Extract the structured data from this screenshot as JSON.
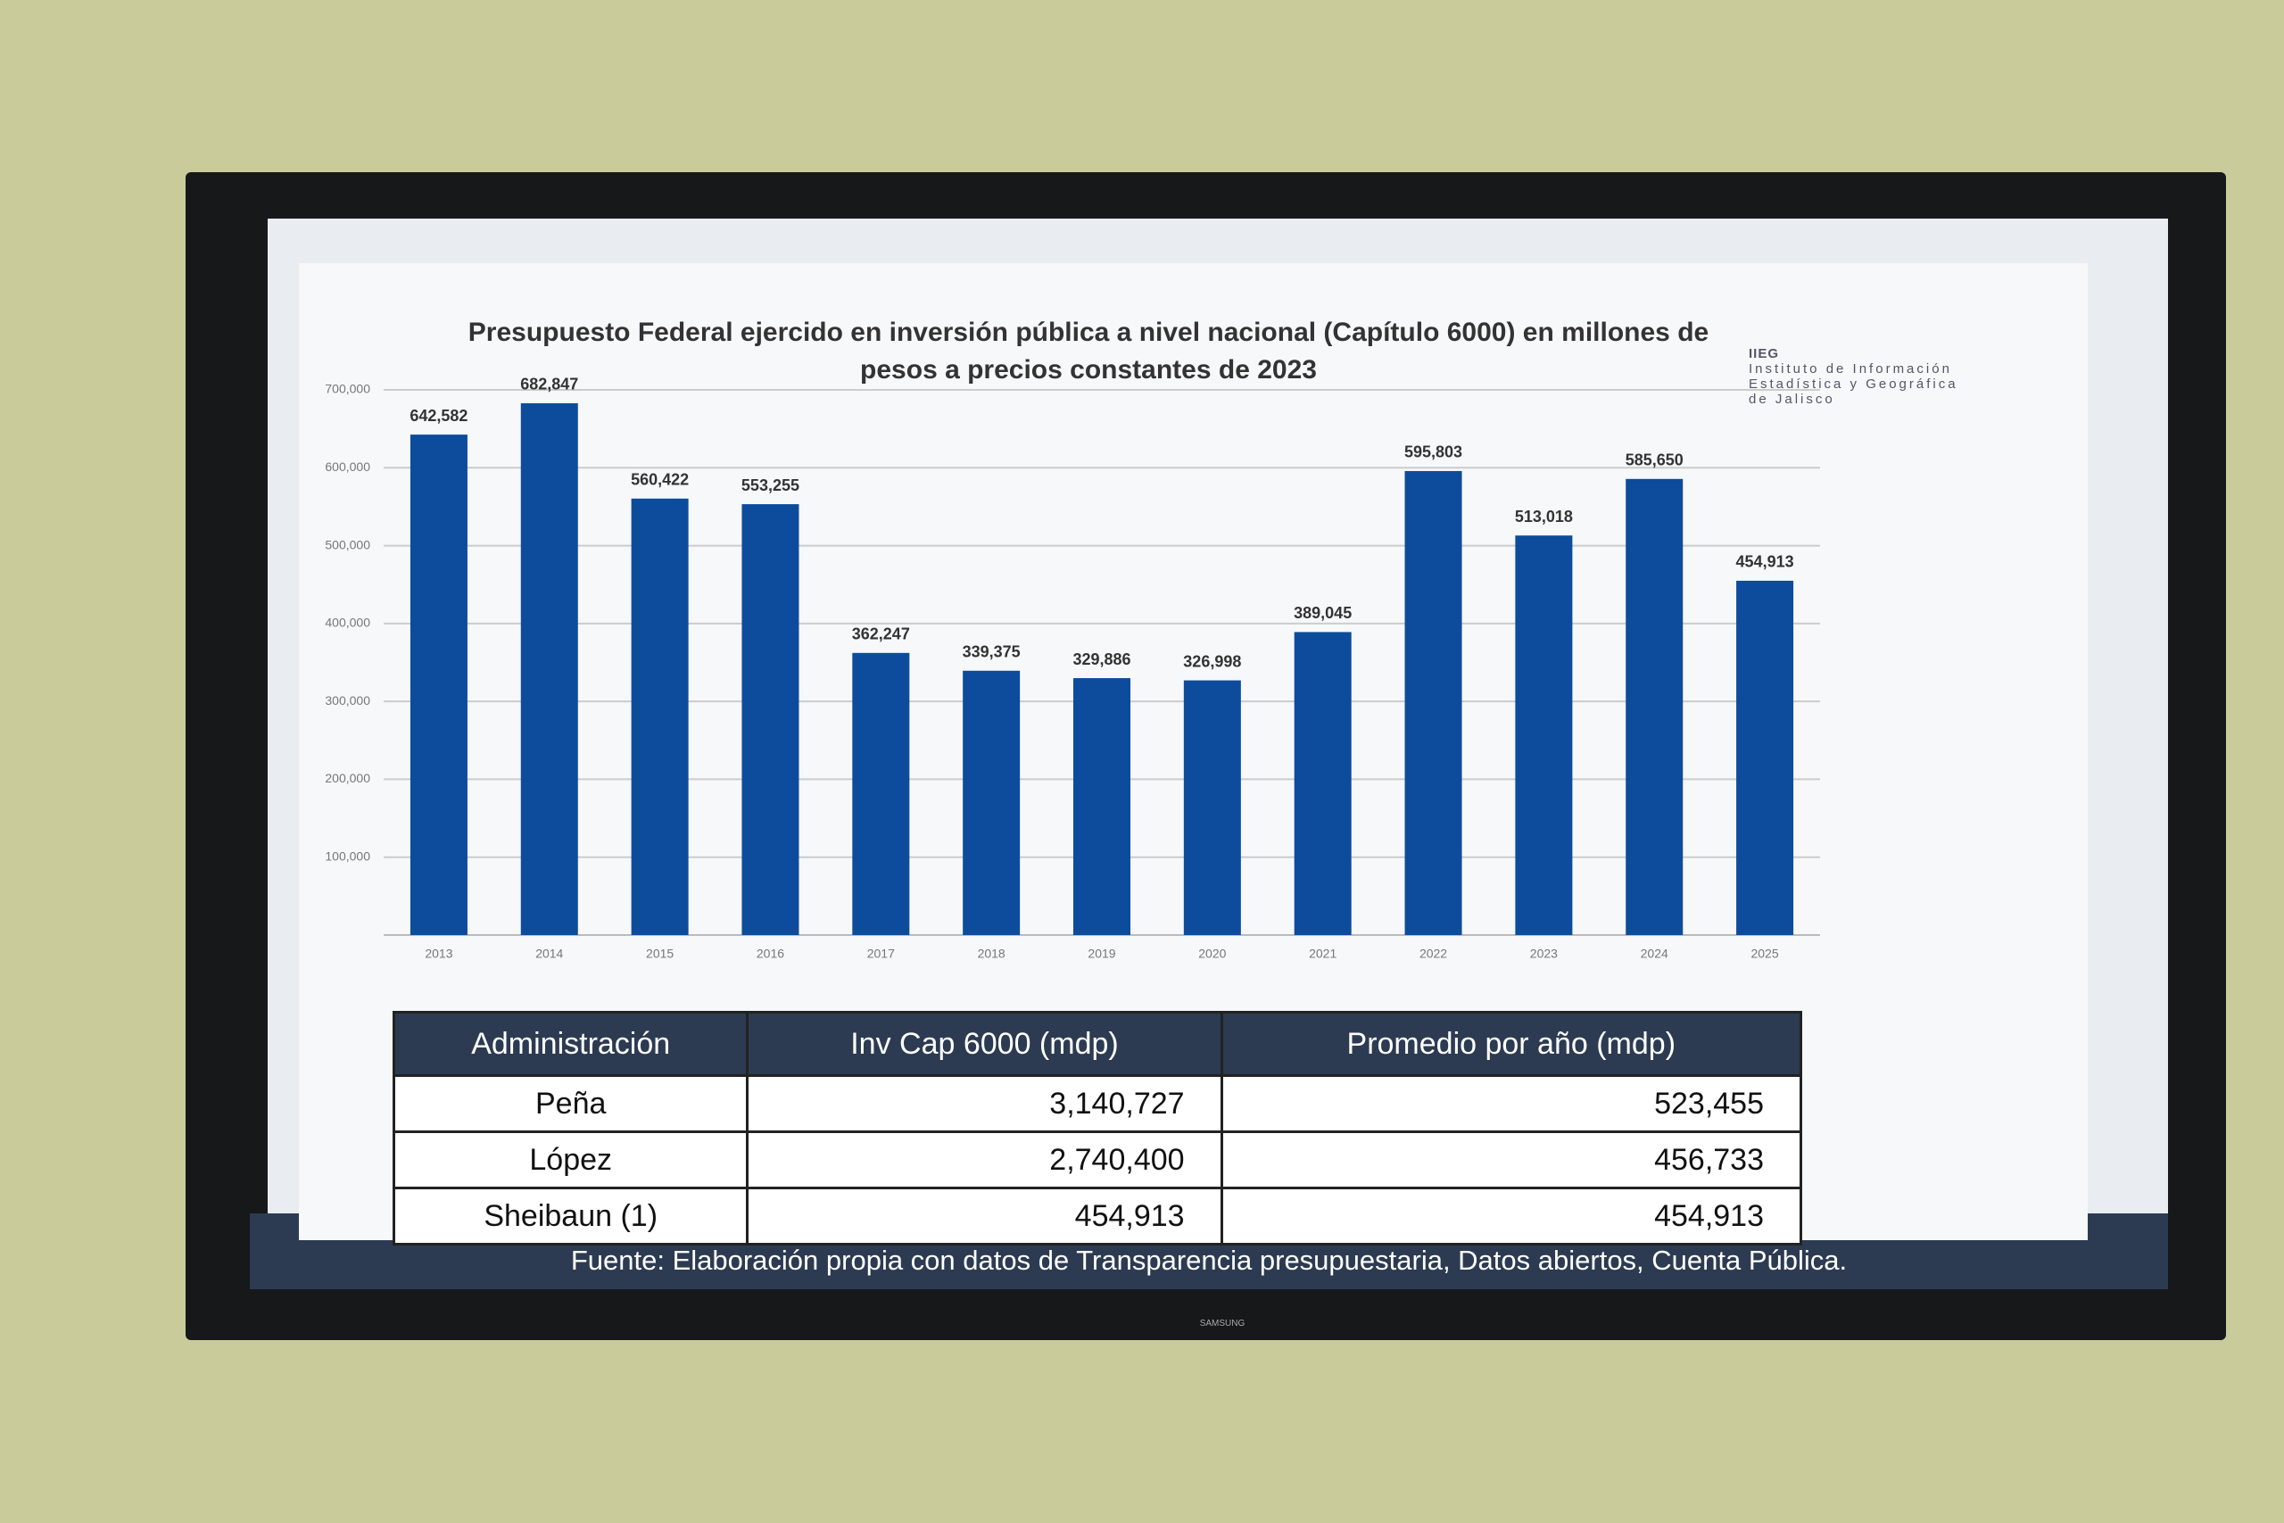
{
  "chart_data": {
    "type": "bar",
    "title": "Presupuesto Federal ejercido en inversión pública a nivel nacional (Capítulo 6000) en millones de pesos a precios constantes de 2023",
    "categories": [
      "2013",
      "2014",
      "2015",
      "2016",
      "2017",
      "2018",
      "2019",
      "2020",
      "2021",
      "2022",
      "2023",
      "2024",
      "2025"
    ],
    "values": [
      642582,
      682847,
      560422,
      553255,
      362247,
      339375,
      329886,
      326998,
      389045,
      595803,
      513018,
      585650,
      454913
    ],
    "value_labels": [
      "642,582",
      "682,847",
      "560,422",
      "553,255",
      "362,247",
      "339,375",
      "329,886",
      "326,998",
      "389,045",
      "595,803",
      "513,018",
      "585,650",
      "454,913"
    ],
    "color": "#0d4c9c",
    "ylim": [
      0,
      700000
    ],
    "yticks": [
      {
        "value": 100000,
        "label": "100,000"
      },
      {
        "value": 200000,
        "label": "200,000"
      },
      {
        "value": 300000,
        "label": "300,000"
      },
      {
        "value": 400000,
        "label": "400,000"
      },
      {
        "value": 500000,
        "label": "500,000"
      },
      {
        "value": 600000,
        "label": "600,000"
      },
      {
        "value": 700000,
        "label": "700,000"
      }
    ],
    "grid": true
  },
  "logo": {
    "acronym": "IIEG",
    "lines": [
      "Instituto de Información",
      "Estadística y Geográfica",
      "de Jalisco"
    ]
  },
  "table": {
    "header": [
      "Administración",
      "Inv Cap 6000 (mdp)",
      "Promedio por año (mdp)"
    ],
    "rows": [
      [
        "Peña",
        "3,140,727",
        "523,455"
      ],
      [
        "López",
        "2,740,400",
        "456,733"
      ],
      [
        "Sheibaun (1)",
        "454,913",
        "454,913"
      ]
    ]
  },
  "source": "Fuente: Elaboración propia con datos de Transparencia presupuestaria, Datos abiertos, Cuenta Pública.",
  "brand": "SAMSUNG"
}
